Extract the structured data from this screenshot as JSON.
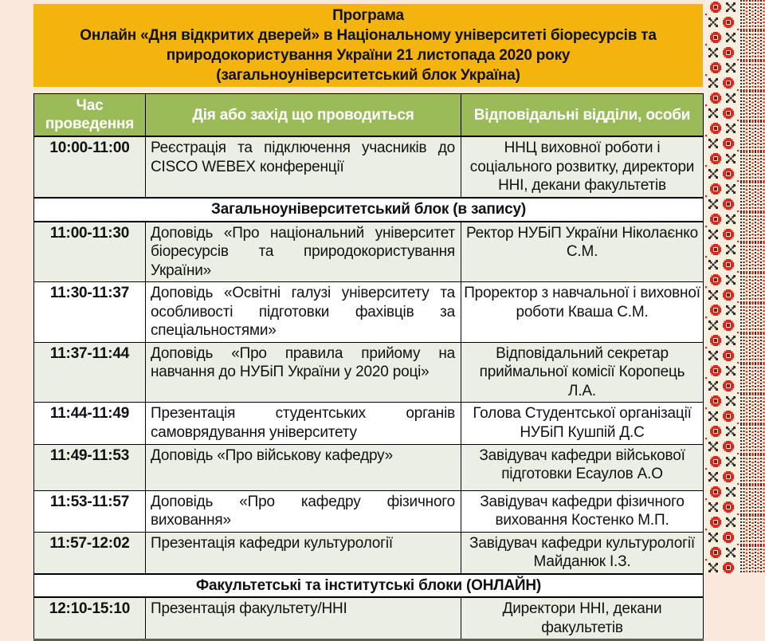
{
  "header": {
    "lines": [
      "Програма",
      "Онлайн «Дня відкритих дверей» в Національному  університеті біоресурсів та",
      "природокористування  України  21 листопада  2020 року",
      "(загальноуніверситетський  блок  Україна)"
    ]
  },
  "table": {
    "headers": [
      "Час проведення",
      "Дія або захід що проводиться",
      "Відповідальні відділи, особи"
    ],
    "rows": [
      {
        "type": "data",
        "band": true,
        "time": "10:00-11:00",
        "action": "Реєстрація та підключення учасників до CISCO WEBEX конференції",
        "responsible": "ННЦ виховної роботи і соціального розвитку, директори ННІ, декани факультетів"
      },
      {
        "type": "section",
        "label": "Загальноуніверситетський блок  (в запису)"
      },
      {
        "type": "data",
        "band": true,
        "time": "11:00-11:30",
        "action": "Доповідь «Про національний університет біоресурсів та природокористування України»",
        "responsible": "Ректор НУБіП України Ніколаєнко С.М."
      },
      {
        "type": "data",
        "band": false,
        "time": "11:30-11:37",
        "action": "Доповідь «Освітні галузі університету та особливості підготовки фахівців за спеціальностями»",
        "responsible": "Проректор з навчальної і виховної роботи  Кваша С.М."
      },
      {
        "type": "data",
        "band": true,
        "time": "11:37-11:44",
        "action": "Доповідь «Про правила прийому на навчання до НУБіП України у 2020 році»",
        "responsible": "Відповідальний секретар приймальної комісії  Коропець Л.А."
      },
      {
        "type": "data",
        "band": false,
        "time": "11:44-11:49",
        "action": "Презентація студентських органів самоврядування університету",
        "responsible": "Голова Студентської організації НУБіП Кушпій Д.С"
      },
      {
        "type": "data",
        "band": true,
        "time": "11:49-11:53",
        "action": "Доповідь «Про військову кафедру»",
        "responsible": "Завідувач кафедри військової підготовки Есаулов А.О"
      },
      {
        "type": "data",
        "band": false,
        "time": "11:53-11:57",
        "action": "Доповідь «Про кафедру фізичного виховання»",
        "responsible": "Завідувач кафедри фізичного виховання Костенко М.П."
      },
      {
        "type": "data",
        "band": true,
        "time": "11:57-12:02",
        "action": "Презентація кафедри культурології",
        "responsible": "Завідувач кафедри культурології Майданюк І.З."
      },
      {
        "type": "section",
        "label": "Факультетські та інститутські блоки  (ОНЛАЙН)"
      },
      {
        "type": "data",
        "band": true,
        "time": "12:10-15:10",
        "action": "Презентація факультету/ННІ",
        "responsible": "Директори ННІ, декани факультетів"
      }
    ]
  },
  "decor": {
    "name": "ukrainian-embroidery-border"
  },
  "theme": {
    "background": "#FAE8DC",
    "header_bg": "#F5B30D",
    "table_header_bg": "#9BBB59",
    "table_header_text": "#FFFFFF",
    "band_row_bg": "#EBEEE2",
    "plain_row_bg": "#FFFFFF",
    "border_color": "#000000",
    "text_color": "#111111",
    "embroidery": {
      "red": "#D9291F",
      "dark_red": "#8C1710",
      "black": "#2E2B24",
      "cream": "#F6EEDF"
    }
  }
}
